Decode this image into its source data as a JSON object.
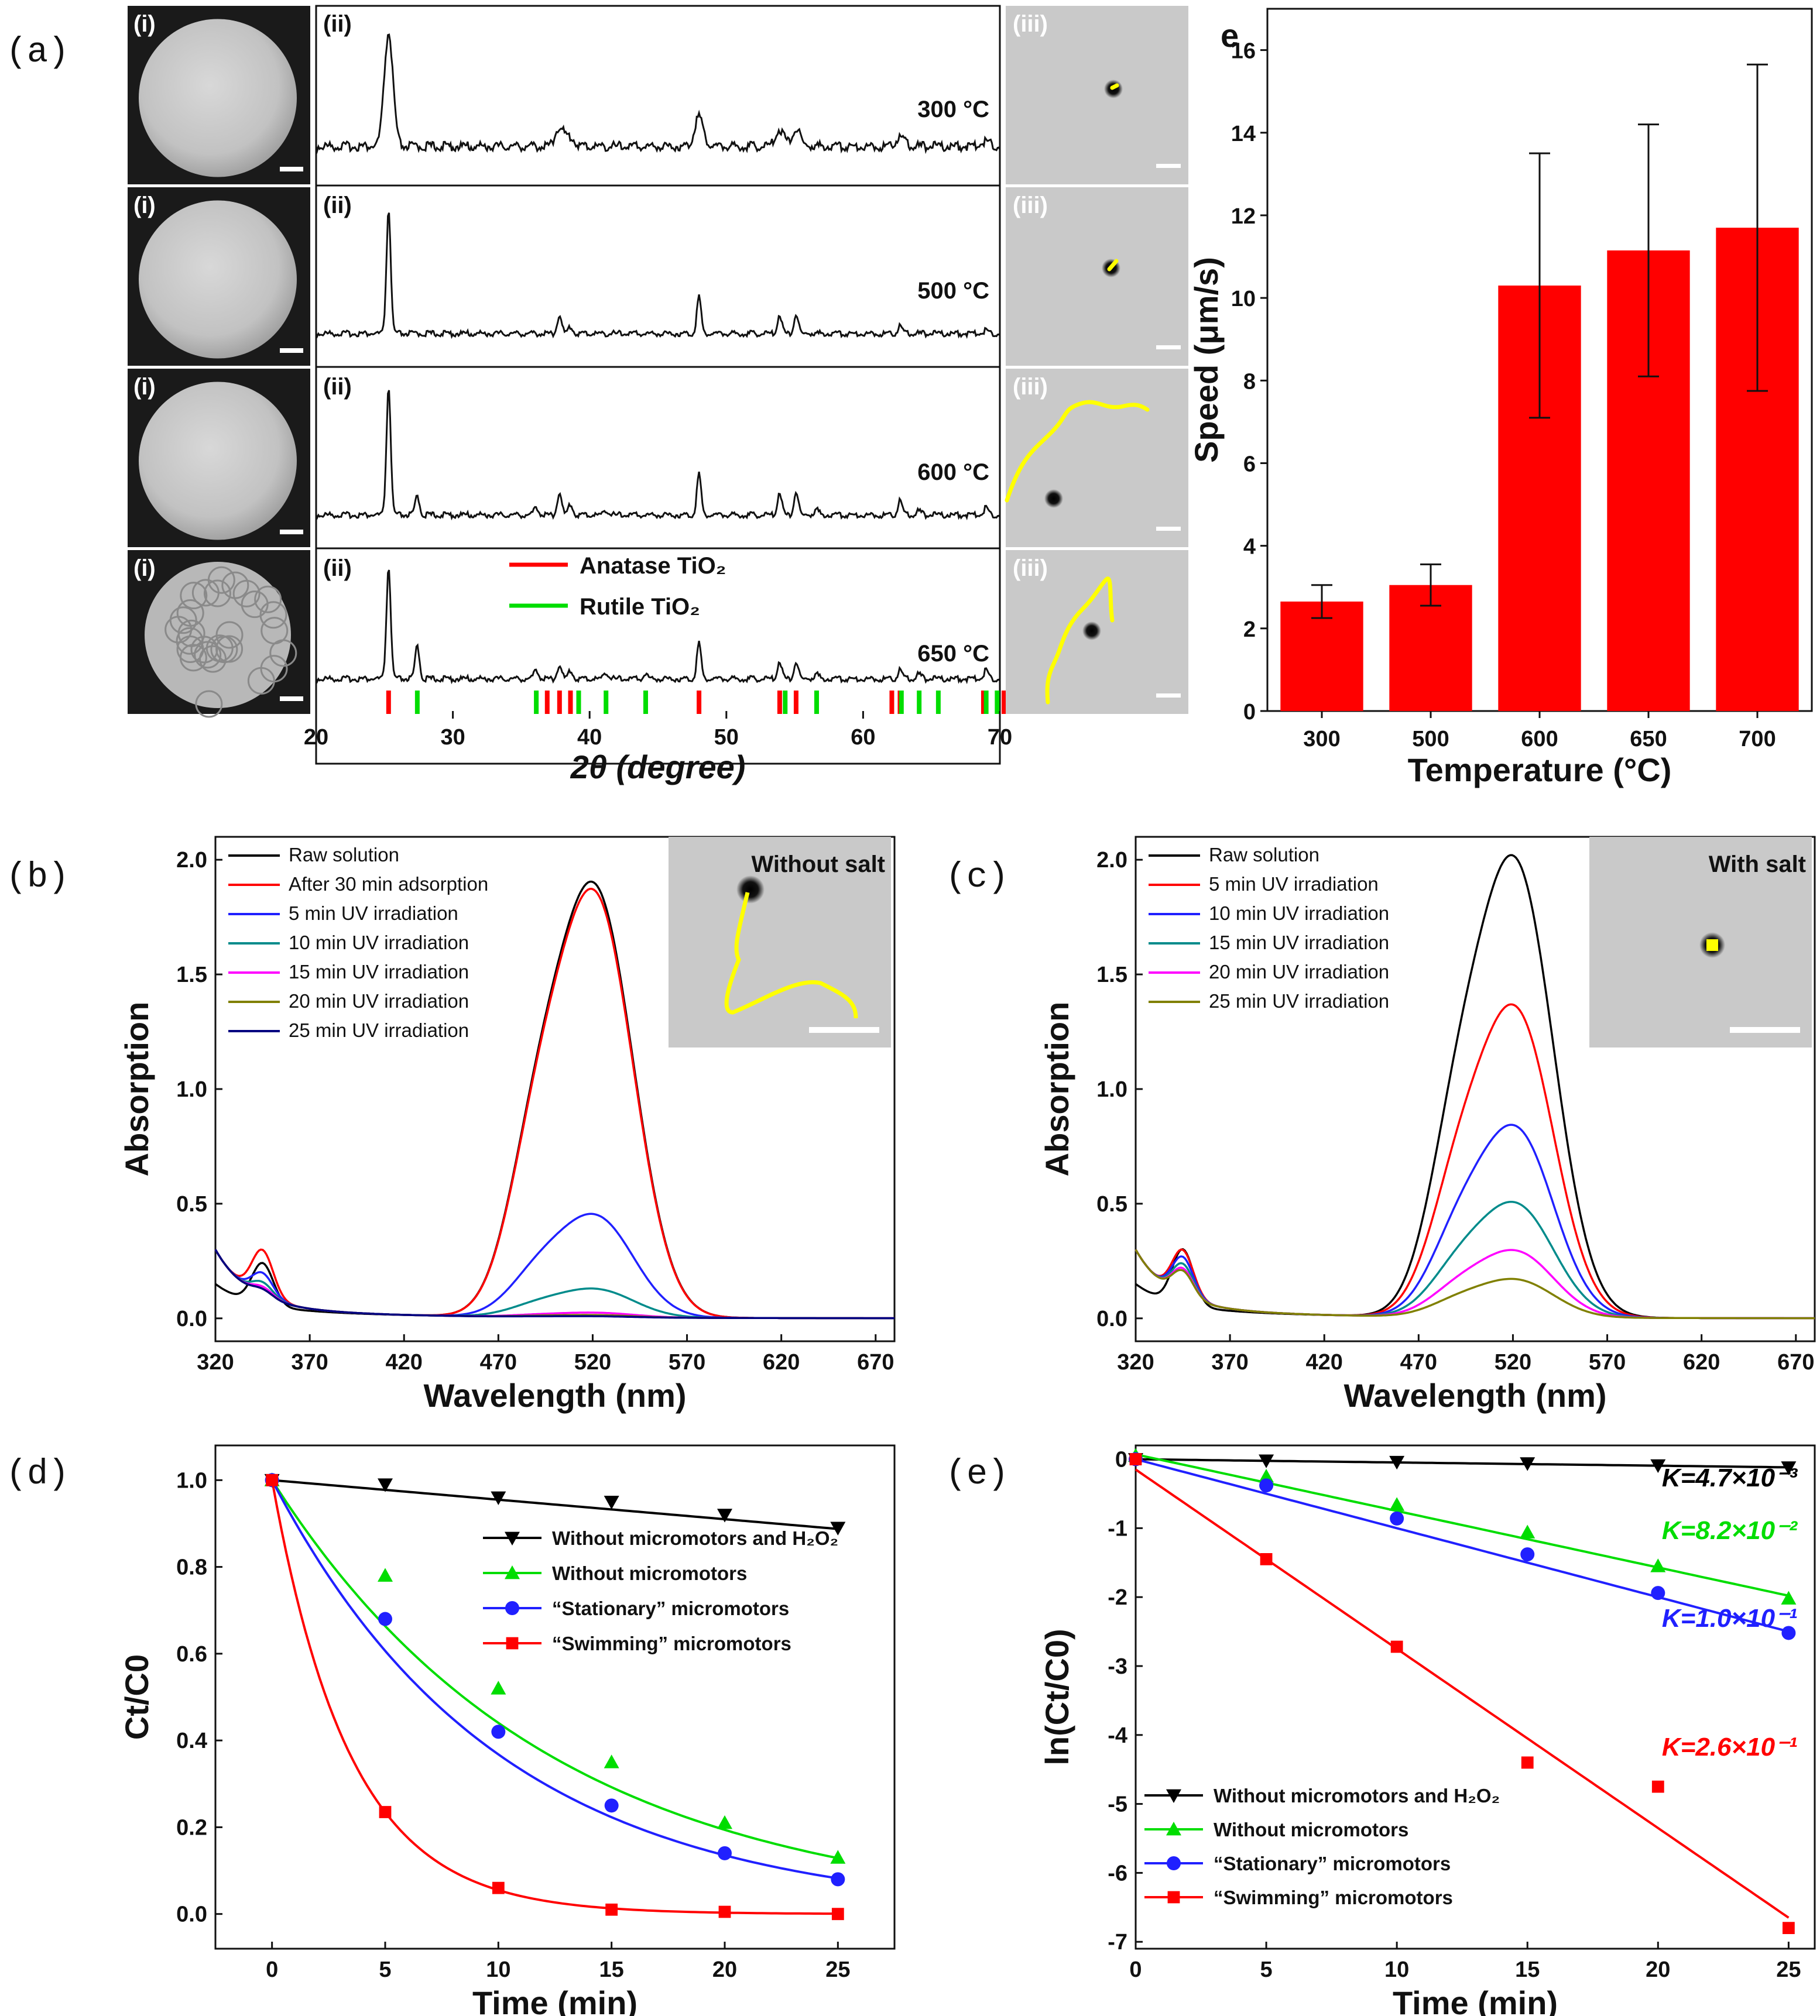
{
  "panel_labels": {
    "a": "(a)",
    "b": "(b)",
    "c": "(c)",
    "d": "(d)",
    "e": "(e)"
  },
  "panel_a": {
    "sem_label": "(i)",
    "xrd_label": "(ii)",
    "track_label": "(iii)",
    "temperatures": [
      "300 °C",
      "500 °C",
      "600 °C",
      "650 °C"
    ],
    "legend": [
      "Anatase TiO₂",
      "Rutile TiO₂"
    ],
    "colors": {
      "anatase": "#ff0000",
      "rutile": "#00dd00"
    }
  },
  "chart_data": [
    {
      "id": "xrd",
      "type": "line",
      "xlabel": "2θ (degree)",
      "ylabel": "",
      "xlim": [
        20,
        70
      ],
      "xticks": [
        "20",
        "30",
        "40",
        "50",
        "60",
        "70"
      ],
      "peaks": [
        25.3,
        27.4,
        36.1,
        37.8,
        38.6,
        41.2,
        44.1,
        48.0,
        53.9,
        55.1,
        56.6,
        62.7,
        64.1,
        69.0
      ],
      "series": [
        {
          "name": "300 °C",
          "peak_heights": [
            0.82,
            0,
            0,
            0.14,
            0.06,
            0,
            0,
            0.22,
            0.12,
            0.12,
            0,
            0.07,
            0,
            0.04
          ]
        },
        {
          "name": "500 °C",
          "peak_heights": [
            0.9,
            0,
            0,
            0.14,
            0.05,
            0,
            0,
            0.27,
            0.14,
            0.14,
            0,
            0.06,
            0,
            0.03
          ]
        },
        {
          "name": "600 °C",
          "peak_heights": [
            0.93,
            0.14,
            0.06,
            0.17,
            0.08,
            0.04,
            0,
            0.3,
            0.17,
            0.17,
            0.04,
            0.11,
            0.03,
            0.06
          ]
        },
        {
          "name": "650 °C",
          "peak_heights": [
            0.93,
            0.28,
            0.08,
            0.12,
            0.07,
            0.06,
            0.04,
            0.3,
            0.15,
            0.14,
            0.04,
            0.08,
            0.04,
            0.08
          ]
        }
      ],
      "reference_anatase": [
        25.3,
        36.9,
        37.8,
        38.6,
        48.0,
        53.9,
        55.1,
        62.1,
        62.7,
        68.8,
        70.3
      ],
      "reference_rutile": [
        27.4,
        36.1,
        39.2,
        41.2,
        44.1,
        54.3,
        56.6,
        62.8,
        64.1,
        65.5,
        69.0,
        69.8
      ]
    },
    {
      "id": "speed",
      "type": "bar",
      "panel_label": "e",
      "title": "",
      "categories": [
        "300",
        "500",
        "600",
        "650",
        "700"
      ],
      "values": [
        2.65,
        3.05,
        10.3,
        11.15,
        11.7
      ],
      "errors": [
        0.4,
        0.5,
        3.2,
        3.05,
        3.95
      ],
      "xlabel": "Temperature (°C)",
      "ylabel": "Speed (μm/s)",
      "ylim": [
        0,
        17
      ],
      "yticks": [
        "0",
        "2",
        "4",
        "6",
        "8",
        "10",
        "12",
        "14",
        "16"
      ],
      "color": "#ff0000"
    },
    {
      "id": "uv_without_salt",
      "type": "line",
      "xlabel": "Wavelength (nm)",
      "ylabel": "Absorption",
      "xlim": [
        320,
        680
      ],
      "ylim": [
        -0.1,
        2.1
      ],
      "xticks": [
        "320",
        "370",
        "420",
        "470",
        "520",
        "570",
        "620",
        "670"
      ],
      "yticks": [
        "0.0",
        "0.5",
        "1.0",
        "1.5",
        "2.0"
      ],
      "inset_label": "Without salt",
      "series": [
        {
          "name": "Raw solution",
          "color": "#000000",
          "peak": 1.81,
          "shoulder": 0.18
        },
        {
          "name": "After 30 min adsorption",
          "color": "#ff0000",
          "peak": 1.78,
          "shoulder": 0.2
        },
        {
          "name": "5 min UV irradiation",
          "color": "#2020ff",
          "peak": 0.43,
          "shoulder": 0.1
        },
        {
          "name": "10 min UV irradiation",
          "color": "#008b8b",
          "peak": 0.12,
          "shoulder": 0.06
        },
        {
          "name": "15 min UV irradiation",
          "color": "#ff00ff",
          "peak": 0.02,
          "shoulder": 0.04
        },
        {
          "name": "20 min UV irradiation",
          "color": "#808000",
          "peak": 0.01,
          "shoulder": 0.03
        },
        {
          "name": "25 min UV irradiation",
          "color": "#000080",
          "peak": 0.005,
          "shoulder": 0.03
        }
      ]
    },
    {
      "id": "uv_with_salt",
      "type": "line",
      "xlabel": "Wavelength (nm)",
      "ylabel": "Absorption",
      "xlim": [
        320,
        680
      ],
      "ylim": [
        -0.1,
        2.1
      ],
      "xticks": [
        "320",
        "370",
        "420",
        "470",
        "520",
        "570",
        "620",
        "670"
      ],
      "yticks": [
        "0.0",
        "0.5",
        "1.0",
        "1.5",
        "2.0"
      ],
      "inset_label": "With salt",
      "series": [
        {
          "name": "Raw solution",
          "color": "#000000",
          "peak": 1.92,
          "shoulder": 0.24
        },
        {
          "name": "5 min UV irradiation",
          "color": "#ff0000",
          "peak": 1.3,
          "shoulder": 0.2
        },
        {
          "name": "10 min UV irradiation",
          "color": "#2020ff",
          "peak": 0.8,
          "shoulder": 0.17
        },
        {
          "name": "15 min UV irradiation",
          "color": "#008b8b",
          "peak": 0.48,
          "shoulder": 0.14
        },
        {
          "name": "20 min UV irradiation",
          "color": "#ff00ff",
          "peak": 0.28,
          "shoulder": 0.12
        },
        {
          "name": "25 min UV irradiation",
          "color": "#808000",
          "peak": 0.16,
          "shoulder": 0.11
        }
      ]
    },
    {
      "id": "ct_c0",
      "type": "scatter",
      "xlabel": "Time (min)",
      "ylabel": "Ct/C0",
      "xlim": [
        -2.5,
        27.5
      ],
      "ylim": [
        -0.08,
        1.08
      ],
      "xticks": [
        "0",
        "5",
        "10",
        "15",
        "20",
        "25"
      ],
      "yticks": [
        "0.0",
        "0.2",
        "0.4",
        "0.6",
        "0.8",
        "1.0"
      ],
      "x": [
        0,
        5,
        10,
        15,
        20,
        25
      ],
      "series": [
        {
          "name": "Without micromotors and H₂O₂",
          "color": "#000000",
          "marker": "triangle-down",
          "values": [
            1.0,
            0.99,
            0.96,
            0.95,
            0.92,
            0.89
          ]
        },
        {
          "name": "Without micromotors",
          "color": "#00dd00",
          "marker": "triangle-up",
          "values": [
            1.0,
            0.78,
            0.52,
            0.35,
            0.21,
            0.13
          ]
        },
        {
          "name": "“Stationary” micromotors",
          "color": "#2020ff",
          "marker": "circle",
          "values": [
            1.0,
            0.68,
            0.42,
            0.25,
            0.14,
            0.08
          ]
        },
        {
          "name": "“Swimming” micromotors",
          "color": "#ff0000",
          "marker": "square",
          "values": [
            1.0,
            0.235,
            0.06,
            0.01,
            0.005,
            0.0
          ]
        }
      ]
    },
    {
      "id": "ln_ct_c0",
      "type": "scatter",
      "xlabel": "Time (min)",
      "ylabel": "ln(Ct/C0)",
      "xlim": [
        0,
        26
      ],
      "ylim": [
        -7.1,
        0.2
      ],
      "xticks": [
        "0",
        "5",
        "10",
        "15",
        "20",
        "25"
      ],
      "yticks": [
        "0",
        "-1",
        "-2",
        "-3",
        "-4",
        "-5",
        "-6",
        "-7"
      ],
      "x": [
        0,
        5,
        10,
        15,
        20,
        25
      ],
      "series": [
        {
          "name": "Without micromotors and H₂O₂",
          "color": "#000000",
          "marker": "triangle-down",
          "values": [
            0,
            -0.02,
            -0.04,
            -0.06,
            -0.09,
            -0.12
          ],
          "k_label": "K=4.7×10⁻³"
        },
        {
          "name": "Without micromotors",
          "color": "#00dd00",
          "marker": "triangle-up",
          "values": [
            0.05,
            -0.25,
            -0.66,
            -1.06,
            -1.55,
            -2.02
          ],
          "k_label": "K=8.2×10⁻²"
        },
        {
          "name": "“Stationary” micromotors",
          "color": "#2020ff",
          "marker": "circle",
          "values": [
            0,
            -0.38,
            -0.86,
            -1.38,
            -1.94,
            -2.52
          ],
          "k_label": "K=1.0×10⁻¹"
        },
        {
          "name": "“Swimming” micromotors",
          "color": "#ff0000",
          "marker": "square",
          "values": [
            0,
            -1.45,
            -2.72,
            -4.4,
            -4.75,
            -6.8
          ],
          "k_label": "K=2.6×10⁻¹"
        }
      ]
    }
  ]
}
